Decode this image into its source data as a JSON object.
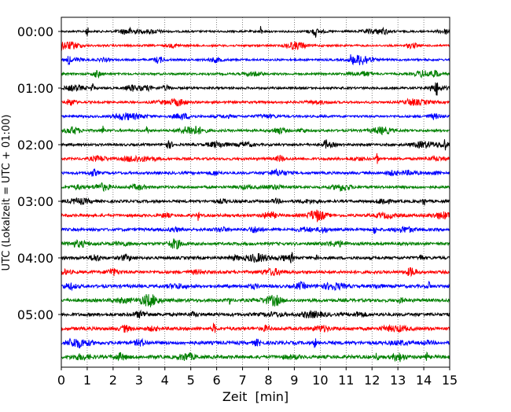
{
  "chart_data": {
    "type": "line",
    "subtype": "helicorder",
    "title": "",
    "xlabel": "Zeit  [min]",
    "ylabel": "UTC (Lokalzeit = UTC + 01:00)",
    "xlim": [
      0,
      15
    ],
    "x_ticks": [
      "0",
      "1",
      "2",
      "3",
      "4",
      "5",
      "6",
      "7",
      "8",
      "9",
      "10",
      "11",
      "12",
      "13",
      "14",
      "15"
    ],
    "y_ticks": [
      "00:00",
      "01:00",
      "02:00",
      "03:00",
      "04:00",
      "05:00"
    ],
    "minutes_per_line": 15,
    "line_count": 24,
    "grid": "vertical dotted at each minute",
    "trace_colors": [
      "#000000",
      "#ff0000",
      "#0000ff",
      "#008000"
    ],
    "events": [
      {
        "line": 0,
        "minute": 1.0
      },
      {
        "line": 0,
        "minute": 7.7
      },
      {
        "line": 0,
        "minute": 9.8
      },
      {
        "line": 2,
        "minute": 0.3
      },
      {
        "line": 2,
        "minute": 11.2
      },
      {
        "line": 3,
        "minute": 14.5
      },
      {
        "line": 4,
        "minute": 1.2
      },
      {
        "line": 4,
        "minute": 14.5
      },
      {
        "line": 7,
        "minute": 1.6
      },
      {
        "line": 7,
        "minute": 3.3
      },
      {
        "line": 8,
        "minute": 10.2
      },
      {
        "line": 8,
        "minute": 14.8
      },
      {
        "line": 9,
        "minute": 12.2
      },
      {
        "line": 12,
        "minute": 14.0
      },
      {
        "line": 13,
        "minute": 5.3
      },
      {
        "line": 14,
        "minute": 12.1
      },
      {
        "line": 16,
        "minute": 8.9
      },
      {
        "line": 16,
        "minute": 9.9
      },
      {
        "line": 16,
        "minute": 13.9
      },
      {
        "line": 18,
        "minute": 14.2
      },
      {
        "line": 19,
        "minute": 6.5
      },
      {
        "line": 21,
        "minute": 5.9
      },
      {
        "line": 22,
        "minute": 9.8
      },
      {
        "line": 23,
        "minute": 12.2
      },
      {
        "line": 23,
        "minute": 14.1
      }
    ]
  }
}
